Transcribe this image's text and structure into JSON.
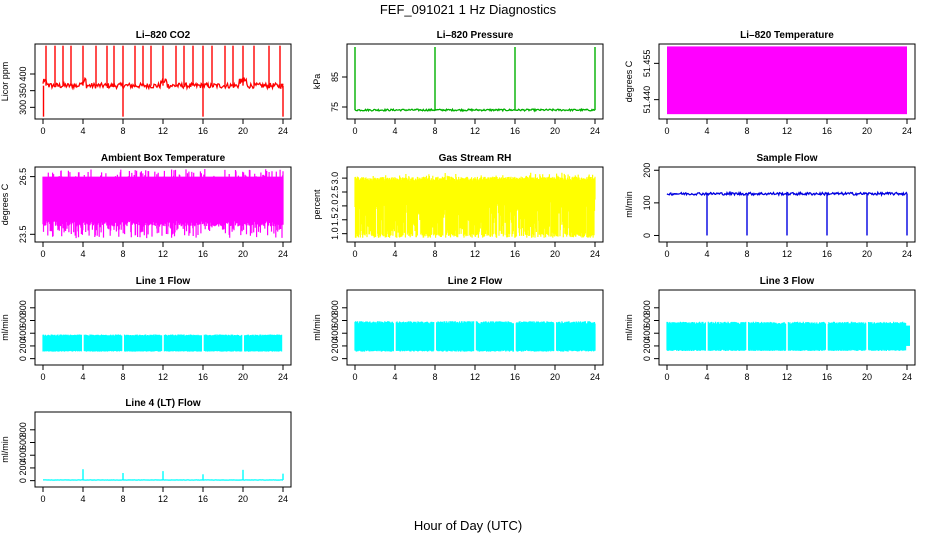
{
  "page": {
    "title": "FEF_091021  1 Hz Diagnostics",
    "xlabel": "Hour of Day (UTC)"
  },
  "chart_data": [
    {
      "id": "co2",
      "type": "line",
      "title": "Li–820 CO2",
      "ylabel": "Licor ppm",
      "color": "#ff0000",
      "xlim": [
        0,
        24
      ],
      "ylim": [
        265,
        490
      ],
      "xticks": [
        0,
        4,
        8,
        12,
        16,
        20,
        24
      ],
      "yticks": [
        300,
        350,
        400
      ],
      "baseline": 365,
      "noise": 8,
      "spikes": [
        0.3,
        1.2,
        2.0,
        2.8,
        4.0,
        5.3,
        6.4,
        7.1,
        8.0,
        9.2,
        10.0,
        10.8,
        12.0,
        13.3,
        14.1,
        15.0,
        16.0,
        16.9,
        18.2,
        19.0,
        20.0,
        21.1,
        22.6,
        23.7
      ],
      "spike_top": 485,
      "dips": [
        0.05,
        8.0,
        16.0,
        24.0
      ],
      "dip_bottom": 272
    },
    {
      "id": "pressure",
      "type": "line",
      "title": "Li–820 Pressure",
      "ylabel": "kPa",
      "color": "#00b000",
      "xlim": [
        0,
        24
      ],
      "ylim": [
        71,
        96
      ],
      "xticks": [
        0,
        4,
        8,
        12,
        16,
        20,
        24
      ],
      "yticks": [
        75,
        85
      ],
      "baseline": 74,
      "noise": 0.3,
      "spikes": [
        0.0,
        8.0,
        16.0,
        24.0
      ],
      "spike_top": 95
    },
    {
      "id": "licor_temp",
      "type": "area",
      "title": "Li–820 Temperature",
      "ylabel": "degrees C",
      "color": "#ff00ff",
      "xlim": [
        0,
        24
      ],
      "ylim": [
        51.432,
        51.463
      ],
      "xticks": [
        0,
        4,
        8,
        12,
        16,
        20,
        24
      ],
      "yticks": [
        51.44,
        51.455
      ],
      "ytick_labels": [
        "51.440",
        "51.455"
      ],
      "band": [
        51.434,
        51.462
      ]
    },
    {
      "id": "box_temp",
      "type": "area",
      "title": "Ambient Box Temperature",
      "ylabel": "degrees C",
      "color": "#ff00ff",
      "xlim": [
        0,
        24
      ],
      "ylim": [
        23.1,
        27.0
      ],
      "xticks": [
        0,
        4,
        8,
        12,
        16,
        20,
        24
      ],
      "yticks": [
        23.5,
        26.5
      ],
      "band_top": 26.5,
      "band_bottom": 24.2,
      "dip_to": 23.3
    },
    {
      "id": "rh",
      "type": "area",
      "title": "Gas Stream RH",
      "ylabel": "percent",
      "color": "#ffff00",
      "xlim": [
        0,
        24
      ],
      "ylim": [
        0.7,
        3.4
      ],
      "xticks": [
        0,
        4,
        8,
        12,
        16,
        20,
        24
      ],
      "yticks": [
        1.0,
        1.5,
        2.0,
        2.5,
        3.0
      ],
      "ytick_labels": [
        "1.0",
        "1.5",
        "2.0",
        "2.5",
        "3.0"
      ],
      "band_top": 3.05,
      "band_bottom": 1.0
    },
    {
      "id": "sample_flow",
      "type": "line",
      "title": "Sample Flow",
      "ylabel": "ml/min",
      "color": "#0000e0",
      "xlim": [
        0,
        24
      ],
      "ylim": [
        -20,
        210
      ],
      "xticks": [
        0,
        4,
        8,
        12,
        16,
        20,
        24
      ],
      "yticks": [
        0,
        100,
        200
      ],
      "baseline": 128,
      "noise": 4,
      "dips": [
        4.0,
        8.0,
        12.0,
        16.0,
        20.0,
        24.0
      ],
      "dip_bottom": 0
    },
    {
      "id": "line1",
      "type": "area",
      "title": "Line 1 Flow",
      "ylabel": "ml/min",
      "color": "#00ffff",
      "xlim": [
        0,
        24
      ],
      "ylim": [
        -100,
        1080
      ],
      "xticks": [
        0,
        4,
        8,
        12,
        16,
        20,
        24
      ],
      "yticks": [
        0,
        200,
        400,
        600,
        800
      ],
      "band_top": 380,
      "band_bottom": 110,
      "gaps": [
        4.0,
        8.0,
        12.0,
        16.0,
        20.0,
        24.0
      ]
    },
    {
      "id": "line2",
      "type": "area",
      "title": "Line 2 Flow",
      "ylabel": "ml/min",
      "color": "#00ffff",
      "xlim": [
        0,
        24
      ],
      "ylim": [
        -100,
        1080
      ],
      "xticks": [
        0,
        4,
        8,
        12,
        16,
        20,
        24
      ],
      "yticks": [
        0,
        200,
        400,
        600,
        800
      ],
      "band_top": 590,
      "band_bottom": 110,
      "gaps": [
        4.0,
        8.0,
        12.0,
        16.0,
        20.0
      ]
    },
    {
      "id": "line3",
      "type": "area",
      "title": "Line 3 Flow",
      "ylabel": "ml/min",
      "color": "#00ffff",
      "xlim": [
        0,
        24
      ],
      "ylim": [
        -100,
        1080
      ],
      "xticks": [
        0,
        4,
        8,
        12,
        16,
        20,
        24
      ],
      "yticks": [
        0,
        200,
        400,
        600,
        800
      ],
      "band_top": 580,
      "band_bottom": 120,
      "gaps": [
        4.0,
        8.0,
        12.0,
        16.0,
        20.0,
        24.0
      ]
    },
    {
      "id": "line4",
      "type": "line",
      "title": "Line 4 (LT) Flow",
      "ylabel": "ml/min",
      "color": "#00ffff",
      "xlim": [
        0,
        24
      ],
      "ylim": [
        -100,
        1080
      ],
      "xticks": [
        0,
        4,
        8,
        12,
        16,
        20,
        24
      ],
      "yticks": [
        0,
        200,
        400,
        600,
        800
      ],
      "baseline": 10,
      "noise": 2,
      "spikes": [
        4.0,
        8.0,
        12.0,
        16.0,
        20.0,
        24.0
      ],
      "spike_heights": [
        180,
        120,
        150,
        100,
        170,
        110
      ]
    }
  ]
}
